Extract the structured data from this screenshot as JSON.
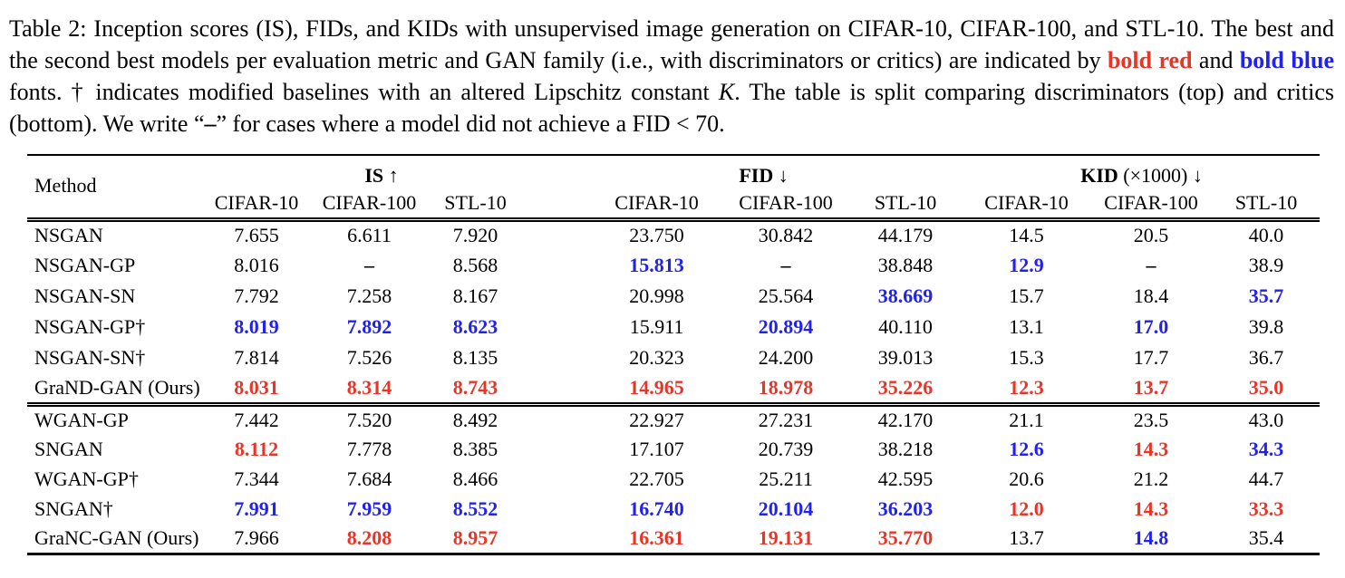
{
  "caption": {
    "segments": [
      {
        "style": "normal",
        "text": "Table 2: Inception scores (IS), FIDs, and KIDs with unsupervised image generation on CIFAR-10, CIFAR-100, and STL-10. The best and the second best models per evaluation metric and GAN family (i.e., with discriminators or critics) are indicated by "
      },
      {
        "style": "bold-red",
        "text": "bold red"
      },
      {
        "style": "normal",
        "text": " and "
      },
      {
        "style": "bold-blue",
        "text": "bold blue"
      },
      {
        "style": "normal",
        "text": " fonts. † indicates modified baselines with an altered Lipschitz constant "
      },
      {
        "style": "math-cal",
        "text": "K"
      },
      {
        "style": "normal",
        "text": ". The table is split comparing discriminators (top) and critics (bottom). We write “"
      },
      {
        "style": "bold",
        "text": "–"
      },
      {
        "style": "normal",
        "text": "” for cases where a model did not achieve a FID < 70."
      }
    ]
  },
  "table": {
    "method_header": "Method",
    "colors": {
      "best": "#e73527",
      "second": "#2222ef"
    },
    "groups": [
      {
        "metric": "IS",
        "extra": "",
        "arrow": "↑",
        "datasets": [
          "CIFAR-10",
          "CIFAR-100",
          "STL-10"
        ]
      },
      {
        "metric": "FID",
        "extra": "",
        "arrow": "↓",
        "datasets": [
          "CIFAR-10",
          "CIFAR-100",
          "STL-10"
        ]
      },
      {
        "metric": "KID",
        "extra": "(×1000)",
        "arrow": "↓",
        "datasets": [
          "CIFAR-10",
          "CIFAR-100",
          "STL-10"
        ]
      }
    ],
    "sections": [
      {
        "name": "discriminators",
        "rows": [
          {
            "method": "NSGAN",
            "values": [
              "7.655",
              "6.611",
              "7.920",
              "23.750",
              "30.842",
              "44.179",
              "14.5",
              "20.5",
              "40.0"
            ],
            "marks": [
              null,
              null,
              null,
              null,
              null,
              null,
              null,
              null,
              null
            ]
          },
          {
            "method": "NSGAN-GP",
            "values": [
              "8.016",
              "–",
              "8.568",
              "15.813",
              "–",
              "38.848",
              "12.9",
              "–",
              "38.9"
            ],
            "marks": [
              null,
              null,
              null,
              "second",
              null,
              null,
              "second",
              null,
              null
            ]
          },
          {
            "method": "NSGAN-SN",
            "values": [
              "7.792",
              "7.258",
              "8.167",
              "20.998",
              "25.564",
              "38.669",
              "15.7",
              "18.4",
              "35.7"
            ],
            "marks": [
              null,
              null,
              null,
              null,
              null,
              "second",
              null,
              null,
              "second"
            ]
          },
          {
            "method": "NSGAN-GP†",
            "values": [
              "8.019",
              "7.892",
              "8.623",
              "15.911",
              "20.894",
              "40.110",
              "13.1",
              "17.0",
              "39.8"
            ],
            "marks": [
              "second",
              "second",
              "second",
              null,
              "second",
              null,
              null,
              "second",
              null
            ]
          },
          {
            "method": "NSGAN-SN†",
            "values": [
              "7.814",
              "7.526",
              "8.135",
              "20.323",
              "24.200",
              "39.013",
              "15.3",
              "17.7",
              "36.7"
            ],
            "marks": [
              null,
              null,
              null,
              null,
              null,
              null,
              null,
              null,
              null
            ]
          },
          {
            "method": "GraND-GAN (Ours)",
            "values": [
              "8.031",
              "8.314",
              "8.743",
              "14.965",
              "18.978",
              "35.226",
              "12.3",
              "13.7",
              "35.0"
            ],
            "marks": [
              "best",
              "best",
              "best",
              "best",
              "best",
              "best",
              "best",
              "best",
              "best"
            ]
          }
        ]
      },
      {
        "name": "critics",
        "rows": [
          {
            "method": "WGAN-GP",
            "values": [
              "7.442",
              "7.520",
              "8.492",
              "22.927",
              "27.231",
              "42.170",
              "21.1",
              "23.5",
              "43.0"
            ],
            "marks": [
              null,
              null,
              null,
              null,
              null,
              null,
              null,
              null,
              null
            ]
          },
          {
            "method": "SNGAN",
            "values": [
              "8.112",
              "7.778",
              "8.385",
              "17.107",
              "20.739",
              "38.218",
              "12.6",
              "14.3",
              "34.3"
            ],
            "marks": [
              "best",
              null,
              null,
              null,
              null,
              null,
              "second",
              "best",
              "second"
            ]
          },
          {
            "method": "WGAN-GP†",
            "values": [
              "7.344",
              "7.684",
              "8.466",
              "22.705",
              "25.211",
              "42.595",
              "20.6",
              "21.2",
              "44.7"
            ],
            "marks": [
              null,
              null,
              null,
              null,
              null,
              null,
              null,
              null,
              null
            ]
          },
          {
            "method": "SNGAN†",
            "values": [
              "7.991",
              "7.959",
              "8.552",
              "16.740",
              "20.104",
              "36.203",
              "12.0",
              "14.3",
              "33.3"
            ],
            "marks": [
              "second",
              "second",
              "second",
              "second",
              "second",
              "second",
              "best",
              "best",
              "best"
            ]
          },
          {
            "method": "GraNC-GAN (Ours)",
            "values": [
              "7.966",
              "8.208",
              "8.957",
              "16.361",
              "19.131",
              "35.770",
              "13.7",
              "14.8",
              "35.4"
            ],
            "marks": [
              null,
              "best",
              "best",
              "best",
              "best",
              "best",
              null,
              "second",
              null
            ]
          }
        ]
      }
    ]
  }
}
